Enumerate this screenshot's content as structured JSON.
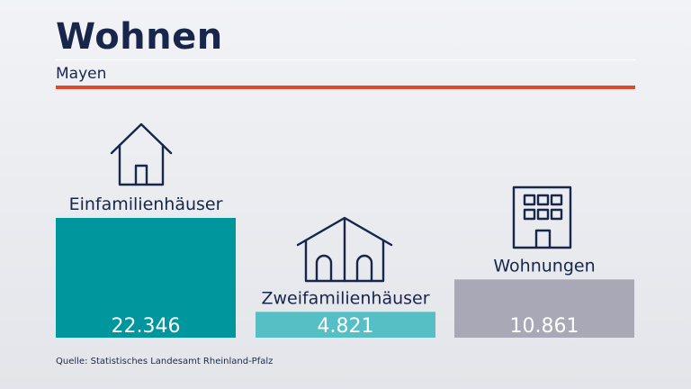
{
  "header": {
    "title": "Wohnen",
    "subtitle": "Mayen"
  },
  "footer": {
    "source": "Quelle: Statistisches Landesamt Rheinland-Pfalz"
  },
  "chart_data": {
    "type": "bar",
    "title": "Wohnen",
    "subtitle": "Mayen",
    "categories": [
      "Einfamilienhäuser",
      "Zweifamilienhäuser",
      "Wohnungen"
    ],
    "values": [
      22346,
      4821,
      10861
    ],
    "value_labels": [
      "22.346",
      "4.821",
      "10.861"
    ],
    "colors": [
      "#00969e",
      "#55bfc5",
      "#a9a8b6"
    ],
    "icons": [
      "house-icon",
      "duplex-house-icon",
      "apartment-building-icon"
    ],
    "grid": false,
    "legend": "none"
  }
}
